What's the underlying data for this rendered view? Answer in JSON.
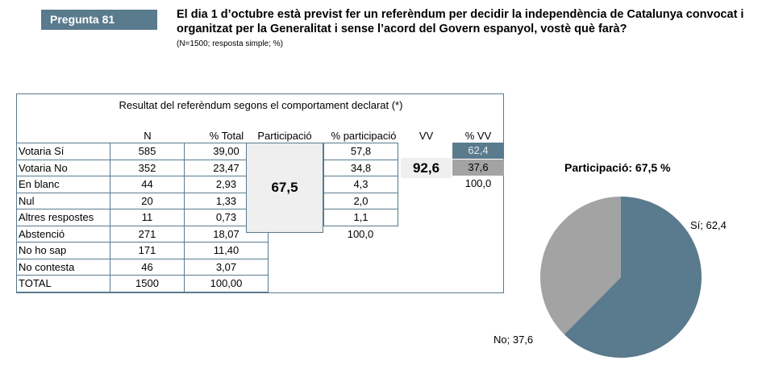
{
  "header": {
    "tag": "Pregunta 81",
    "question": "El dia 1 d’octubre està previst fer un referèndum per decidir la independència de Catalunya convocat i organitzat per la Generalitat i sense l’acord del Govern espanyol, vostè què farà?",
    "note": "(N=1500; resposta simple; %)"
  },
  "table": {
    "title": "Resultat del referèndum segons el comportament declarat (*)",
    "headers": {
      "n": "N",
      "pct_total": "% Total",
      "participacio": "Participació",
      "pct_participacio": "% participació",
      "vv": "VV",
      "pct_vv": "% VV"
    },
    "rows": [
      {
        "label": "Votaria Sí",
        "n": "585",
        "pct": "39,00"
      },
      {
        "label": "Votaria No",
        "n": "352",
        "pct": "23,47"
      },
      {
        "label": "En blanc",
        "n": "44",
        "pct": "2,93"
      },
      {
        "label": "Nul",
        "n": "20",
        "pct": "1,33"
      },
      {
        "label": "Altres respostes",
        "n": "11",
        "pct": "0,73"
      },
      {
        "label": "Abstenció",
        "n": "271",
        "pct": "18,07"
      },
      {
        "label": "No ho sap",
        "n": "171",
        "pct": "11,40"
      },
      {
        "label": "No contesta",
        "n": "46",
        "pct": "3,07"
      },
      {
        "label": "TOTAL",
        "n": "1500",
        "pct": "100,00"
      }
    ],
    "participacio": "67,5",
    "pct_participacio": [
      "57,8",
      "34,8",
      "4,3",
      "2,0",
      "1,1"
    ],
    "pct_participacio_total": "100,0",
    "vv": "92,6",
    "pct_vv": [
      "62,4",
      "37,6"
    ],
    "pct_vv_total": "100,0"
  },
  "colors": {
    "si": "#5a7a8e",
    "no": "#a3a3a3",
    "highlight": "#efefef"
  },
  "chart_data": {
    "type": "pie",
    "title": "Participació: 67,5 %",
    "slices": [
      {
        "label": "Sí; 62,4",
        "value": 62.4,
        "color": "#5a7a8e"
      },
      {
        "label": "No; 37,6",
        "value": 37.6,
        "color": "#a3a3a3"
      }
    ]
  }
}
